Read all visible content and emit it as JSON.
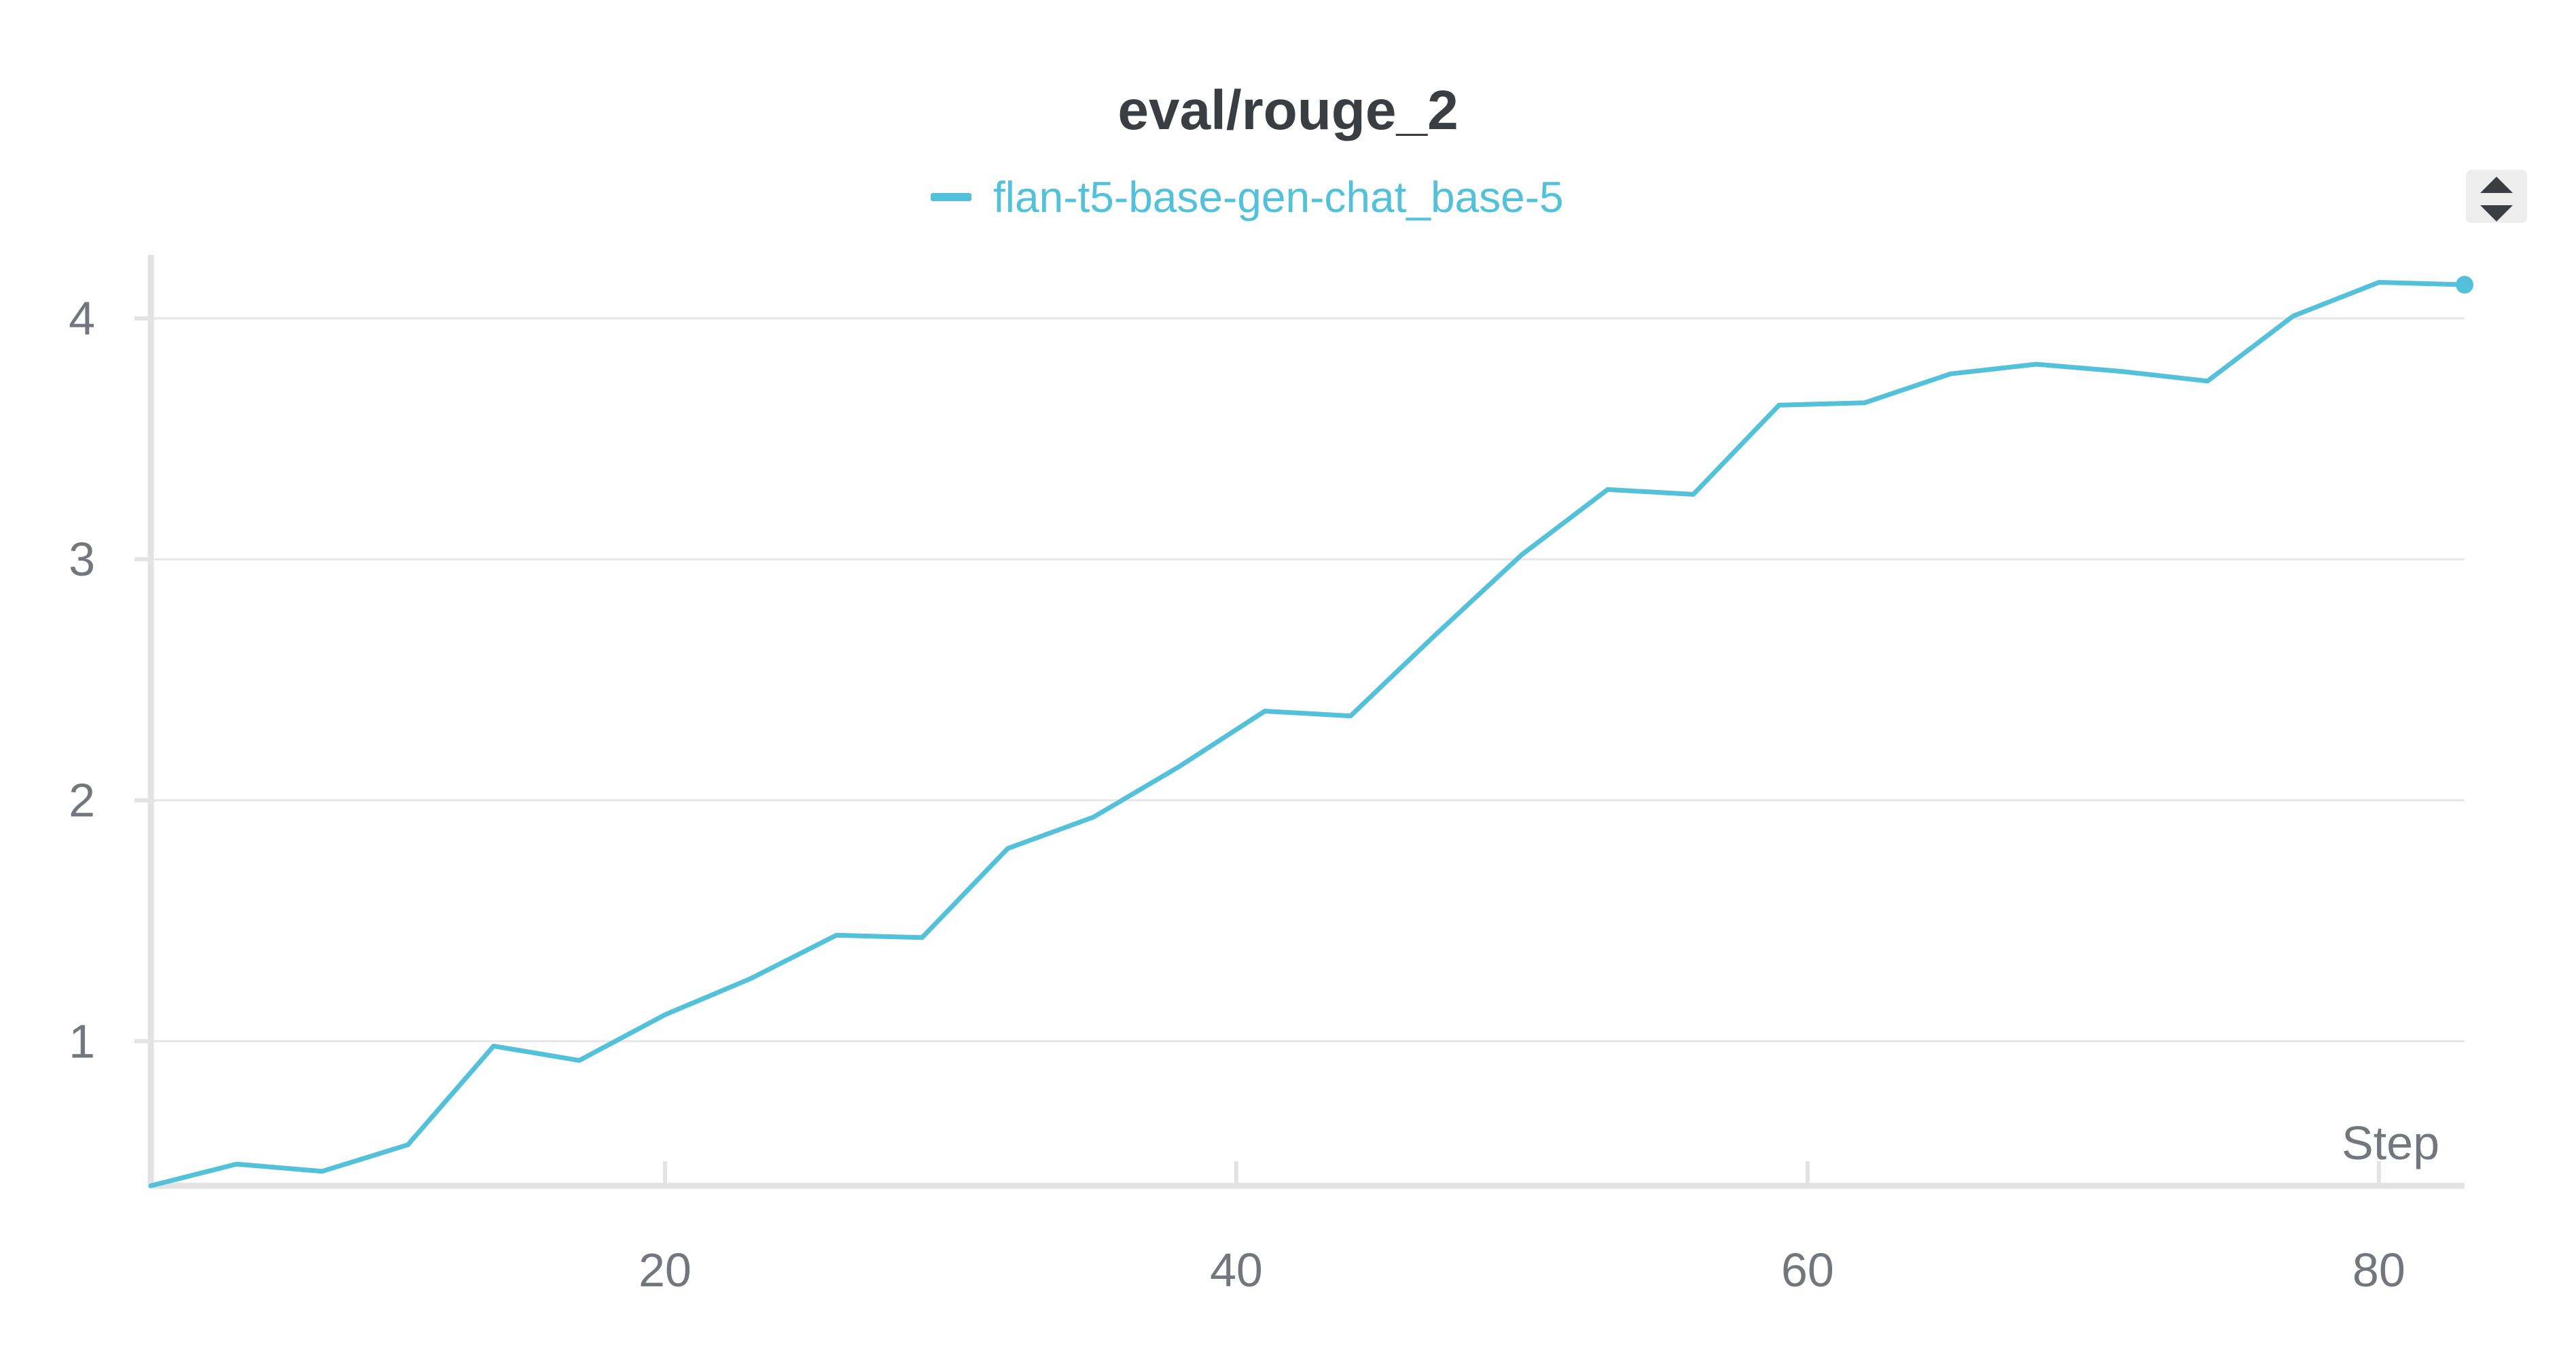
{
  "chart_data": {
    "type": "line",
    "title": "eval/rouge_2",
    "xlabel": "Step",
    "ylabel": "",
    "xlim": [
      2,
      83
    ],
    "ylim": [
      0.4,
      4.25
    ],
    "x_ticks": [
      20,
      40,
      60,
      80
    ],
    "y_ticks": [
      1,
      2,
      3,
      4
    ],
    "grid": true,
    "legend": "top-center",
    "series": [
      {
        "name": "flan-t5-base-gen-chat_base-5",
        "color": "#53c1d9",
        "x": [
          2,
          5,
          8,
          11,
          14,
          17,
          20,
          23,
          26,
          29,
          32,
          35,
          38,
          41,
          44,
          47,
          50,
          53,
          56,
          59,
          62,
          65,
          68,
          71,
          74,
          77,
          80,
          83
        ],
        "y": [
          0.4,
          0.49,
          0.46,
          0.57,
          0.98,
          0.92,
          1.11,
          1.26,
          1.44,
          1.43,
          1.8,
          1.93,
          2.14,
          2.37,
          2.35,
          2.69,
          3.02,
          3.29,
          3.27,
          3.64,
          3.65,
          3.77,
          3.81,
          3.78,
          3.74,
          4.01,
          4.15,
          4.14
        ]
      }
    ]
  },
  "icons": {
    "scroll": "sort-up-down-icon"
  }
}
